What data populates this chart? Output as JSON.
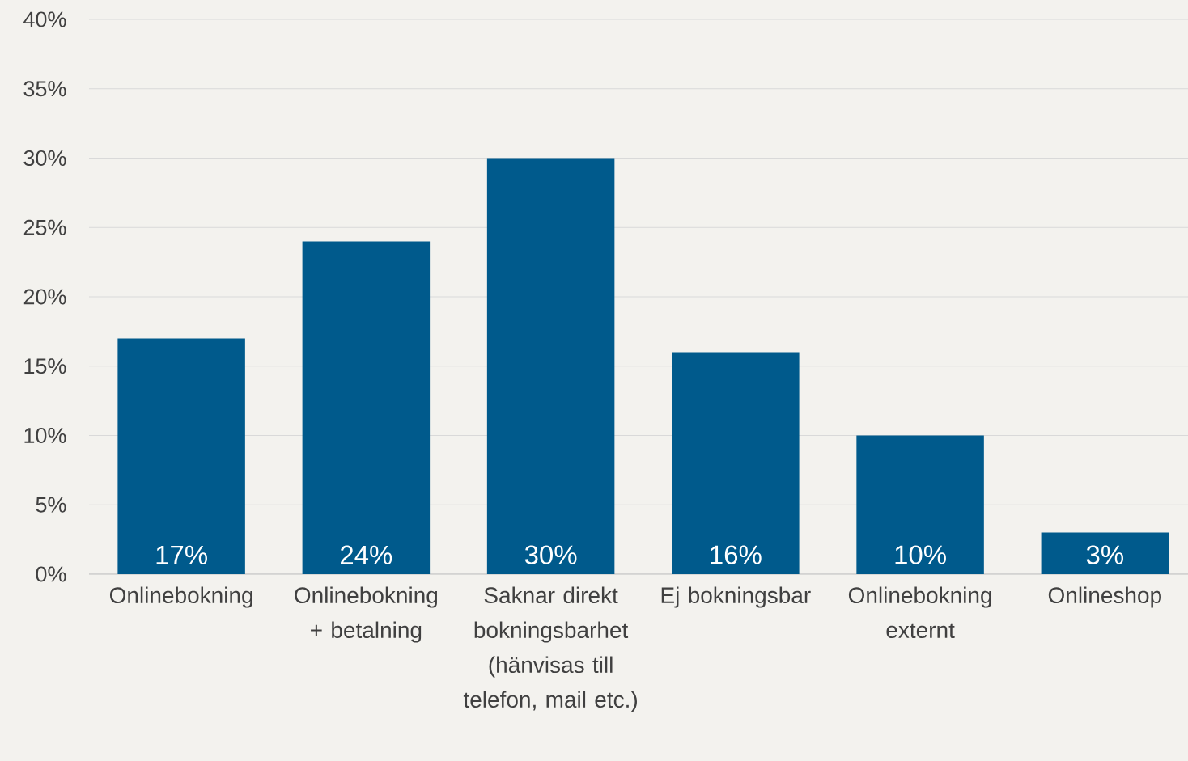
{
  "chart_data": {
    "type": "bar",
    "categories": [
      "Onlinebokning",
      "Onlinebokning + betalning",
      "Saknar direkt bokningsbarhet (hänvisas till telefon, mail etc.)",
      "Ej bokningsbar",
      "Onlinebokning externt",
      "Onlineshop"
    ],
    "values": [
      17,
      24,
      30,
      16,
      10,
      3
    ],
    "value_labels": [
      "17%",
      "24%",
      "30%",
      "16%",
      "10%",
      "3%"
    ],
    "color": "#005a8c",
    "ylim": [
      0,
      40
    ],
    "yticks": [
      {
        "value": 0,
        "label": "0%"
      },
      {
        "value": 5,
        "label": "5%"
      },
      {
        "value": 10,
        "label": "10%"
      },
      {
        "value": 15,
        "label": "15%"
      },
      {
        "value": 20,
        "label": "20%"
      },
      {
        "value": 25,
        "label": "25%"
      },
      {
        "value": 30,
        "label": "30%"
      },
      {
        "value": 35,
        "label": "35%"
      },
      {
        "value": 40,
        "label": "40%"
      }
    ],
    "grid": "y"
  }
}
